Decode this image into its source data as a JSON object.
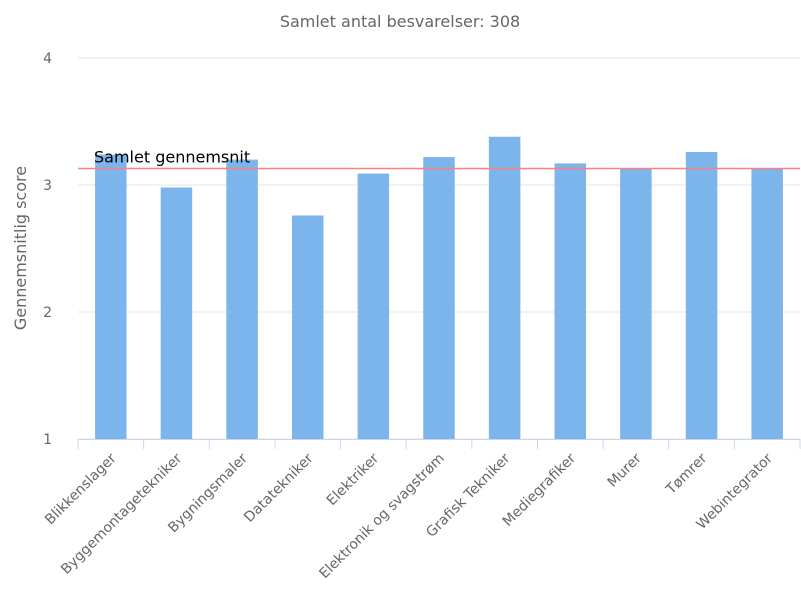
{
  "chart_data": {
    "type": "bar",
    "title": "Samlet antal besvarelser: 308",
    "y_axis_label": "Gennemsnitlig score",
    "categories": [
      "Blikkenslager",
      "Byggemontagetekniker",
      "Bygningsmaler",
      "Datatekniker",
      "Elektriker",
      "Elektronik og svagstrøm",
      "Grafisk Tekniker",
      "Mediegrafiker",
      "Murer",
      "Tømrer",
      "Webintegrator"
    ],
    "values": [
      3.24,
      2.98,
      3.2,
      2.76,
      3.09,
      3.22,
      3.38,
      3.17,
      3.13,
      3.26,
      3.13
    ],
    "color": "#7cb5ec",
    "ylim": [
      1,
      4
    ],
    "yticks": [
      1,
      2,
      3,
      4
    ],
    "grid": true,
    "plot_lines": [
      {
        "value": 3.13,
        "label": "Samlet gennemsnit",
        "color": "#ff7f7f"
      }
    ]
  }
}
